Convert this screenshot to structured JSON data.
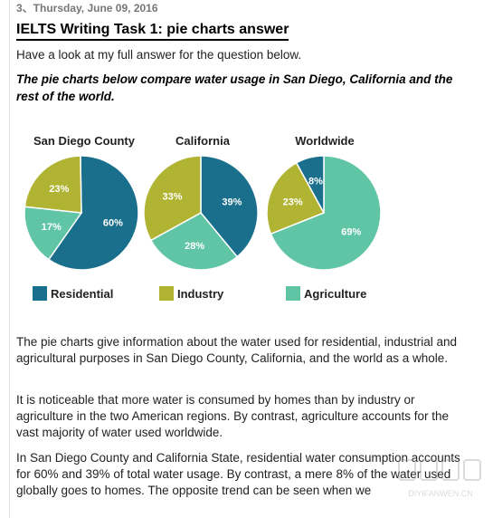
{
  "post": {
    "date": "3、Thursday, June 09, 2016",
    "title": "IELTS Writing Task 1: pie charts answer",
    "intro": "Have a look at my full answer for the question below.",
    "question": "The pie charts below compare water usage in San Diego, California and the rest of the world."
  },
  "chart_data": {
    "type": "pie",
    "colors": {
      "Residential": "#1a6f8c",
      "Industry": "#b1b332",
      "Agriculture": "#5fc5a5"
    },
    "legend": [
      "Residential",
      "Industry",
      "Agriculture"
    ],
    "charts": [
      {
        "title": "San Diego County",
        "slices": [
          {
            "label": "Residential",
            "value": 60,
            "text": "60%"
          },
          {
            "label": "Agriculture",
            "value": 17,
            "text": "17%"
          },
          {
            "label": "Industry",
            "value": 23,
            "text": "23%"
          }
        ]
      },
      {
        "title": "California",
        "slices": [
          {
            "label": "Residential",
            "value": 39,
            "text": "39%"
          },
          {
            "label": "Agriculture",
            "value": 28,
            "text": "28%"
          },
          {
            "label": "Industry",
            "value": 33,
            "text": "33%"
          }
        ]
      },
      {
        "title": "Worldwide",
        "slices": [
          {
            "label": "Agriculture",
            "value": 69,
            "text": "69%"
          },
          {
            "label": "Industry",
            "value": 23,
            "text": "23%"
          },
          {
            "label": "Residential",
            "value": 8,
            "text": "8%"
          }
        ]
      }
    ]
  },
  "answer": {
    "p1": "The pie charts give information about the water used for residential, industrial and agricultural purposes in San Diego County, California, and the world as a whole.",
    "p2": "It is noticeable that more water is consumed by homes than by industry or agriculture in the two American regions. By contrast, agriculture accounts for the vast majority of water used worldwide.",
    "p3": "In San Diego County and California State, residential water consumption accounts for 60% and 39% of total water usage. By contrast, a mere 8% of the water used globally goes to homes. The opposite trend can be seen when we"
  },
  "watermark": {
    "text": "DIYIFANWEN.CN"
  }
}
